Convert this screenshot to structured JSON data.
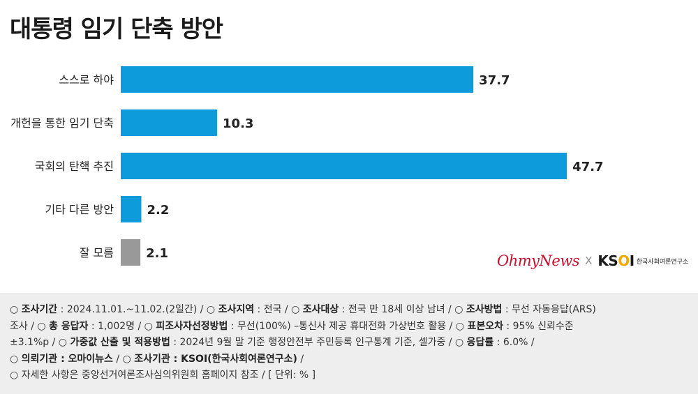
{
  "title": "대통령 임기 단축 방안",
  "chart_data": {
    "type": "bar",
    "orientation": "horizontal",
    "categories": [
      "스스로 하야",
      "개헌을 통한 임기 단축",
      "국회의 탄핵 추진",
      "기타 다른 방안",
      "잘 모름"
    ],
    "values": [
      37.7,
      10.3,
      47.7,
      2.2,
      2.1
    ],
    "value_labels": [
      "37.7",
      "10.3",
      "47.7",
      "2.2",
      "2.1"
    ],
    "colors": [
      "#0d9bdc",
      "#0d9bdc",
      "#0d9bdc",
      "#0d9bdc",
      "#999999"
    ],
    "xlim": [
      0,
      100
    ],
    "grid": false,
    "title": "대통령 임기 단축 방안",
    "xlabel": "",
    "ylabel": ""
  },
  "brand": {
    "ohmynews": "OhmyNews",
    "x": "X",
    "ksoi_k": "KS",
    "ksoi_o": "O",
    "ksoi_i": "I",
    "ksoi_sub": "한국사회여론연구소"
  },
  "notes": {
    "l1": {
      "p1": "○ ",
      "k1": "조사기간",
      "v1": " : 2024.11.01.~11.02.(2일간) / ○ ",
      "k2": "조사지역",
      "v2": " : 전국 / ○ ",
      "k3": "조사대상",
      "v3": " : 전국 만 18세 이상 남녀 / ○ ",
      "k4": "조사방법",
      "v4": " : 무선 자동응답(ARS)"
    },
    "l2": {
      "p1": "조사 / ○ ",
      "k1": "총 응답자",
      "v1": " : 1,002명 / ○ ",
      "k2": "피조사자선정방법",
      "v2": " : 무선(100%) –통신사 제공 휴대전화 가상번호 활용 / ○ ",
      "k3": "표본오차",
      "v3": " : 95% 신뢰수준"
    },
    "l3": {
      "p1": "±3.1%p / ○ ",
      "k1": "가중값 산출 및 적용방법",
      "v1": " : 2024년 9월 말 기준 행정안전부 주민등록 인구통계 기준, 셀가중 / ○ ",
      "k2": "응답률",
      "v2": " : 6.0% /"
    },
    "l4": {
      "p1": "○ ",
      "k1": "의뢰기관 : 오마이뉴스",
      "v1": " / ○ ",
      "k2": "조사기관 : KSOI(한국사회여론연구소)",
      "v2": " /"
    },
    "l5": {
      "p1": "○ 자세한 사항은 중앙선거여론조사심의위원회 홈페이지 참조 / [ 단위: % ]"
    }
  }
}
